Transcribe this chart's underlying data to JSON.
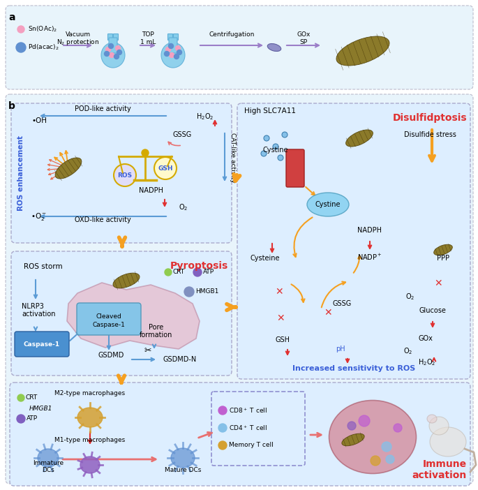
{
  "fig_width": 6.85,
  "fig_height": 7.02,
  "bg_white": "#ffffff",
  "panel_bg": "#e8f4fb",
  "box_bg": "#ddeeff",
  "box_edge": "#aaaacc",
  "blue_arrow": "#5b9bd5",
  "orange_arrow": "#f5a020",
  "red_arrow": "#e03030",
  "pink_arrow": "#e87070",
  "purple_arrow": "#9b7ec8",
  "text_blue": "#3a5fd8",
  "text_red": "#e03030",
  "nano_color": "#8b7a2a",
  "flask_color": "#87ceeb",
  "pink_dot": "#f4a0c0",
  "blue_dot": "#6090d0",
  "scale_color": "#d4aa00",
  "caspase_fill": "#4a90d0",
  "cleaved_fill": "#85c5e8",
  "cystine_fill": "#85d0f0",
  "membrane_fill": "#d04040",
  "m2_color": "#d4a030",
  "m1_color": "#9060c0",
  "dc_color": "#6090d0",
  "cd8_color": "#c060d0",
  "cd4_color": "#85c0e8",
  "mem_color": "#d4a030",
  "tumor_color": "#d06060",
  "crt_color": "#90cc50",
  "atp_color": "#8060c0",
  "hmgb_color": "#8090c0",
  "ros_text": "ROS enhancement",
  "pyroptosis_text": "Pyroptosis",
  "disulfidptosis_text": "Disulfidptosis",
  "sensitivity_text": "Increased sensitivity to ROS"
}
